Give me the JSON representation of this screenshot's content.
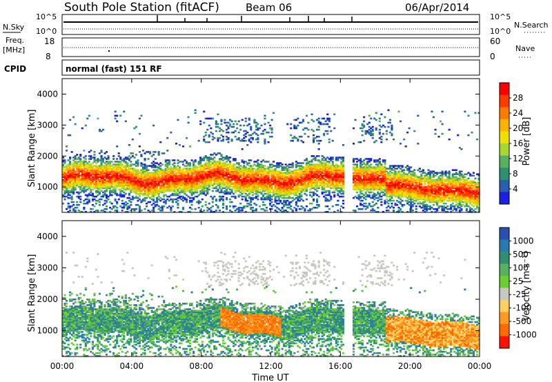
{
  "header": {
    "station": "South Pole Station (fitACF)",
    "beam": "Beam 06",
    "date": "06/Apr/2014"
  },
  "aux_panels": {
    "nsky_label": "N.Sky",
    "nsky_ticks": [
      "10^5",
      "10^0"
    ],
    "nsearch_label": "N.Search",
    "nsearch_ticks": [
      "10^5",
      "10^0"
    ],
    "freq_label_top": "Freq.",
    "freq_label_unit": "[MHz]",
    "freq_ticks": [
      "18",
      "8"
    ],
    "nave_label": "Nave",
    "nave_ticks": [
      "60",
      "0"
    ],
    "cpid_label": "CPID",
    "cpid_value": "normal (fast) 151 RF"
  },
  "chart_data": [
    {
      "type": "heatmap",
      "name": "power",
      "ylabel": "Slant Range [km]",
      "xlabel": "",
      "ylim": [
        180,
        4500
      ],
      "yticks": [
        "1000",
        "2000",
        "3000",
        "4000"
      ],
      "xlim": [
        0,
        24
      ],
      "xticks": [
        "00:00",
        "04:00",
        "08:00",
        "12:00",
        "16:00",
        "20:00",
        "00:00"
      ],
      "colorbar": {
        "label": "Power [dB]",
        "ticks": [
          "28",
          "24",
          "20",
          "16",
          "12",
          "8",
          "4"
        ],
        "colors": [
          "#ff0000",
          "#ff3b00",
          "#ff7a00",
          "#ffb400",
          "#f0e000",
          "#a8d830",
          "#58b060",
          "#2f9070",
          "#2a5fb0",
          "#1a20e0"
        ]
      }
    },
    {
      "type": "heatmap",
      "name": "velocity",
      "ylabel": "Slant Range [km]",
      "xlabel": "Time UT",
      "ylim": [
        180,
        4500
      ],
      "yticks": [
        "1000",
        "2000",
        "3000",
        "4000"
      ],
      "xlim": [
        0,
        24
      ],
      "xticks": [
        "00:00",
        "04:00",
        "08:00",
        "12:00",
        "16:00",
        "20:00",
        "00:00"
      ],
      "colorbar": {
        "label": "Velocity [m s⁻¹]",
        "ticks": [
          "1000",
          "500",
          "100",
          "25",
          "-25",
          "-100",
          "-500",
          "-1000"
        ],
        "colors": [
          "#2a4fb0",
          "#2a7ab0",
          "#2f9070",
          "#58b060",
          "#6ad030",
          "#c8c8c0",
          "#ffd060",
          "#ff9a20",
          "#ff6a00",
          "#ff1000"
        ]
      }
    }
  ]
}
